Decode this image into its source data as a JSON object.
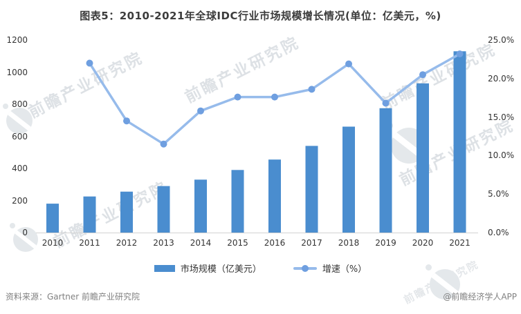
{
  "chart_data": {
    "type": "bar+line",
    "title": "图表5：2010-2021年全球IDC行业市场规模增长情况(单位：亿美元，%)",
    "categories": [
      "2010",
      "2011",
      "2012",
      "2013",
      "2014",
      "2015",
      "2016",
      "2017",
      "2018",
      "2019",
      "2020",
      "2021"
    ],
    "series": [
      {
        "name": "市场规模（亿美元）",
        "type": "bar",
        "axis": "left",
        "values": [
          180,
          225,
          255,
          290,
          330,
          390,
          455,
          540,
          660,
          775,
          930,
          1130
        ]
      },
      {
        "name": "增速（%）",
        "type": "line",
        "axis": "right",
        "values": [
          null,
          22.0,
          14.5,
          11.5,
          15.8,
          17.6,
          17.6,
          18.6,
          21.9,
          16.8,
          20.5,
          23.2
        ]
      }
    ],
    "left_axis": {
      "min": 0,
      "max": 1200,
      "ticks": [
        {
          "label": "1200",
          "value": 1200
        },
        {
          "label": "1000",
          "value": 1000
        },
        {
          "label": "800",
          "value": 800
        },
        {
          "label": "600",
          "value": 600
        },
        {
          "label": "400",
          "value": 400
        },
        {
          "label": "200",
          "value": 200
        },
        {
          "label": "0",
          "value": 0
        }
      ]
    },
    "right_axis": {
      "min": 0,
      "max": 25,
      "ticks": [
        {
          "label": "25.0%",
          "value": 25
        },
        {
          "label": "20.0%",
          "value": 20
        },
        {
          "label": "15.0%",
          "value": 15
        },
        {
          "label": "10.0%",
          "value": 10
        },
        {
          "label": "5.0%",
          "value": 5
        },
        {
          "label": "0.0%",
          "value": 0
        }
      ]
    },
    "legend_position": "bottom",
    "grid": false
  },
  "colors": {
    "bar": "#4A8DCF",
    "line": "#96BBEB",
    "marker": "#6F9FE0",
    "axis_line": "#D2D2D2",
    "title_text": "#3C3C3C",
    "tick_text": "#333333",
    "footer_text": "#808080",
    "watermark": "#AEB8C2"
  },
  "watermark": {
    "text": "前瞻产业研究院"
  },
  "footer": {
    "source": "资料来源：Gartner 前瞻产业研究院",
    "credit": "@前瞻经济学人APP"
  }
}
